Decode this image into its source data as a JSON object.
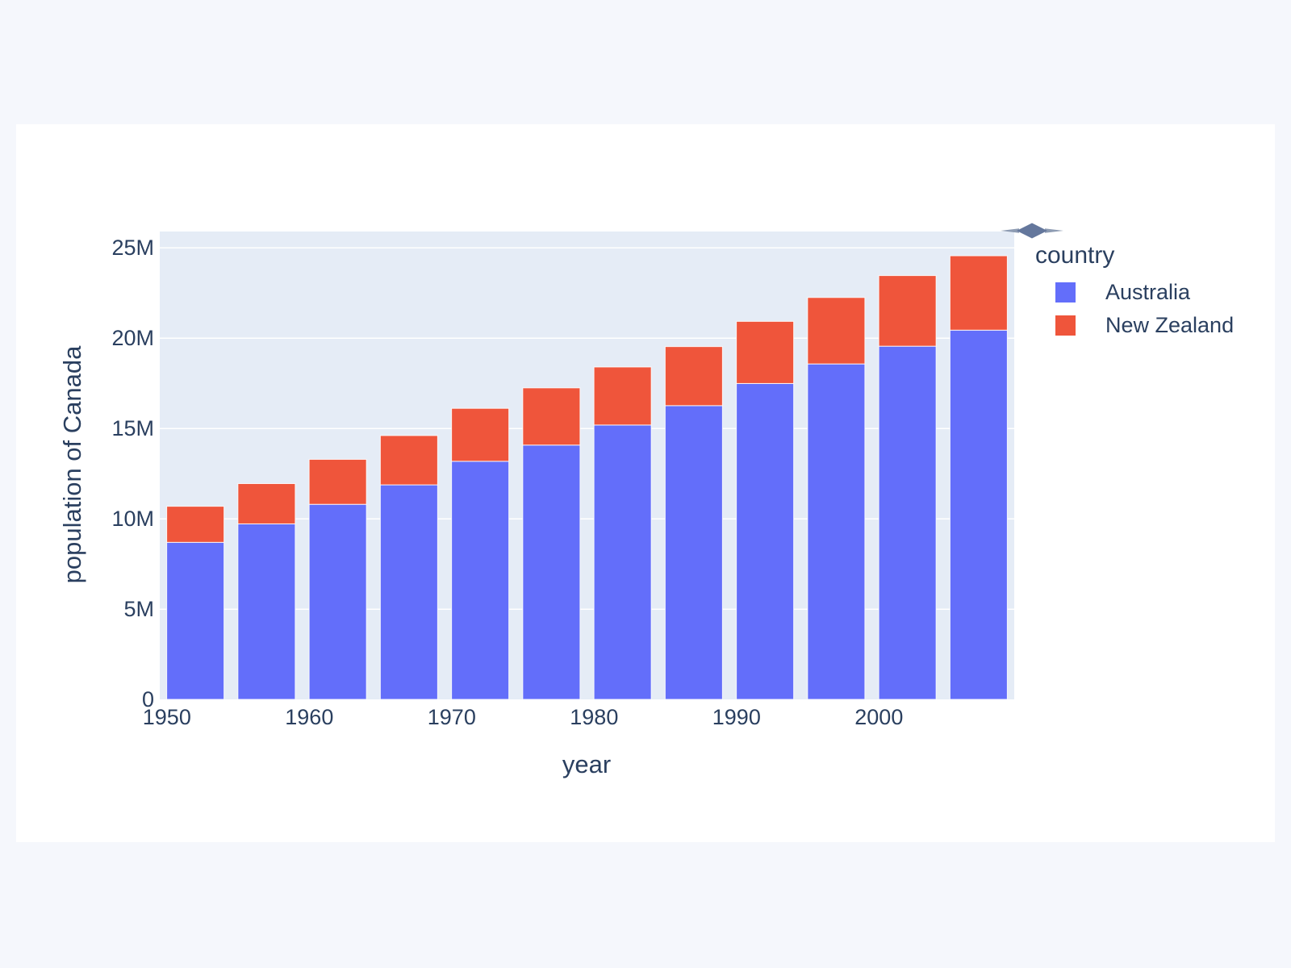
{
  "page": {
    "background": "#f5f7fc",
    "card_background": "#ffffff"
  },
  "chart_data": {
    "type": "bar",
    "stacked": true,
    "title": "",
    "xlabel": "year",
    "ylabel": "population of Canada",
    "categories": [
      1952,
      1957,
      1962,
      1967,
      1972,
      1977,
      1982,
      1987,
      1992,
      1997,
      2002,
      2007
    ],
    "series": [
      {
        "name": "Australia",
        "color": "#636efa",
        "values": [
          8691212,
          9712569,
          10794968,
          11872264,
          13177000,
          14074100,
          15184200,
          16257249,
          17481977,
          18565243,
          19546792,
          20434176
        ]
      },
      {
        "name": "New Zealand",
        "color": "#ef553b",
        "values": [
          1994794,
          2229407,
          2488550,
          2728150,
          2929100,
          3164900,
          3210650,
          3266792,
          3437674,
          3676187,
          3908037,
          4115771
        ]
      }
    ],
    "x_ticks": [
      {
        "value": 1950,
        "label": "1950"
      },
      {
        "value": 1960,
        "label": "1960"
      },
      {
        "value": 1970,
        "label": "1970"
      },
      {
        "value": 1980,
        "label": "1980"
      },
      {
        "value": 1990,
        "label": "1990"
      },
      {
        "value": 2000,
        "label": "2000"
      }
    ],
    "y_ticks": [
      {
        "value": 0,
        "label": "0"
      },
      {
        "value": 5000000,
        "label": "5M"
      },
      {
        "value": 10000000,
        "label": "10M"
      },
      {
        "value": 15000000,
        "label": "15M"
      },
      {
        "value": 20000000,
        "label": "20M"
      },
      {
        "value": 25000000,
        "label": "25M"
      }
    ],
    "xlim": [
      1949.5,
      2009.5
    ],
    "ylim": [
      0,
      25893000
    ],
    "grid": true,
    "plot_bg": "#e5ecf6",
    "grid_color": "#ffffff",
    "text_color": "#2a3f5f",
    "legend": {
      "title": "country",
      "position": "right",
      "items": [
        "Australia",
        "New Zealand"
      ]
    }
  },
  "modebar": {
    "icon": "collapsed-modebar-arrow"
  }
}
